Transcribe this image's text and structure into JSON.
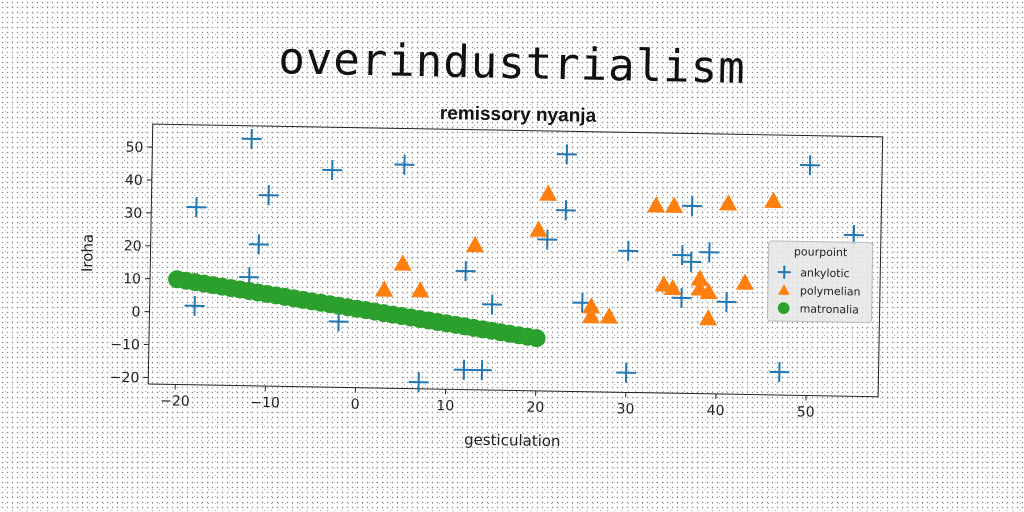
{
  "page": {
    "title": "overindustrialism"
  },
  "chart_data": {
    "type": "scatter",
    "title": "remissory nyanja",
    "xlabel": "gesticulation",
    "ylabel": "Iroha",
    "xlim": [
      -23,
      58
    ],
    "ylim": [
      -22,
      57
    ],
    "xticks": [
      -20,
      -10,
      0,
      10,
      20,
      30,
      40,
      50
    ],
    "yticks": [
      -20,
      -10,
      0,
      10,
      20,
      30,
      40,
      50
    ],
    "grid": false,
    "legend": {
      "title": "pourpoint",
      "position": "center-right"
    },
    "series": [
      {
        "name": "ankylotic",
        "marker": "plus",
        "color": "#1f77b4",
        "points": [
          [
            -12,
            53
          ],
          [
            -18,
            32
          ],
          [
            -10,
            36
          ],
          [
            -11,
            21
          ],
          [
            -12,
            11
          ],
          [
            -18,
            2
          ],
          [
            -3,
            44
          ],
          [
            5,
            46
          ],
          [
            -2,
            -2
          ],
          [
            7,
            -20
          ],
          [
            12,
            -16
          ],
          [
            14,
            -16
          ],
          [
            12,
            14
          ],
          [
            15,
            4
          ],
          [
            23,
            50
          ],
          [
            23,
            33
          ],
          [
            21,
            24
          ],
          [
            25,
            5
          ],
          [
            30,
            21
          ],
          [
            30,
            -16
          ],
          [
            37,
            35
          ],
          [
            36,
            20
          ],
          [
            37,
            18
          ],
          [
            39,
            21
          ],
          [
            36,
            7
          ],
          [
            41,
            6
          ],
          [
            50,
            48
          ],
          [
            55,
            27
          ],
          [
            47,
            -15
          ]
        ]
      },
      {
        "name": "polymelian",
        "marker": "triangle",
        "color": "#ff7f0e",
        "points": [
          [
            3,
            8
          ],
          [
            5,
            16
          ],
          [
            7,
            8
          ],
          [
            13,
            22
          ],
          [
            20,
            27
          ],
          [
            21,
            38
          ],
          [
            26,
            4
          ],
          [
            26,
            1
          ],
          [
            28,
            1
          ],
          [
            33,
            35
          ],
          [
            35,
            35
          ],
          [
            41,
            36
          ],
          [
            46,
            37
          ],
          [
            34,
            11
          ],
          [
            35,
            10
          ],
          [
            38,
            13
          ],
          [
            38,
            10
          ],
          [
            39,
            9
          ],
          [
            39,
            1
          ],
          [
            43,
            12
          ]
        ]
      },
      {
        "name": "matronalia",
        "marker": "circle",
        "color": "#2ca02c",
        "points": [
          [
            -20.0,
            10.0
          ],
          [
            -19.0,
            9.6
          ],
          [
            -18.0,
            9.2
          ],
          [
            -17.0,
            8.8
          ],
          [
            -16.0,
            8.4
          ],
          [
            -15.0,
            8.0
          ],
          [
            -14.0,
            7.6
          ],
          [
            -13.0,
            7.2
          ],
          [
            -12.0,
            6.8
          ],
          [
            -11.0,
            6.4
          ],
          [
            -10.0,
            6.0
          ],
          [
            -9.0,
            5.6
          ],
          [
            -8.0,
            5.2
          ],
          [
            -7.0,
            4.8
          ],
          [
            -6.0,
            4.4
          ],
          [
            -5.0,
            4.0
          ],
          [
            -4.0,
            3.6
          ],
          [
            -3.0,
            3.2
          ],
          [
            -2.0,
            2.8
          ],
          [
            -1.0,
            2.4
          ],
          [
            0.0,
            2.0
          ],
          [
            1.0,
            1.6
          ],
          [
            2.0,
            1.2
          ],
          [
            3.0,
            0.8
          ],
          [
            4.0,
            0.4
          ],
          [
            5.0,
            0.0
          ],
          [
            6.0,
            -0.4
          ],
          [
            7.0,
            -0.8
          ],
          [
            8.0,
            -1.2
          ],
          [
            9.0,
            -1.6
          ],
          [
            10.0,
            -2.0
          ],
          [
            11.0,
            -2.4
          ],
          [
            12.0,
            -2.8
          ],
          [
            13.0,
            -3.2
          ],
          [
            14.0,
            -3.6
          ],
          [
            15.0,
            -4.0
          ],
          [
            16.0,
            -4.4
          ],
          [
            17.0,
            -4.8
          ],
          [
            18.0,
            -5.2
          ],
          [
            19.0,
            -5.6
          ],
          [
            20.0,
            -6.0
          ]
        ]
      }
    ]
  }
}
